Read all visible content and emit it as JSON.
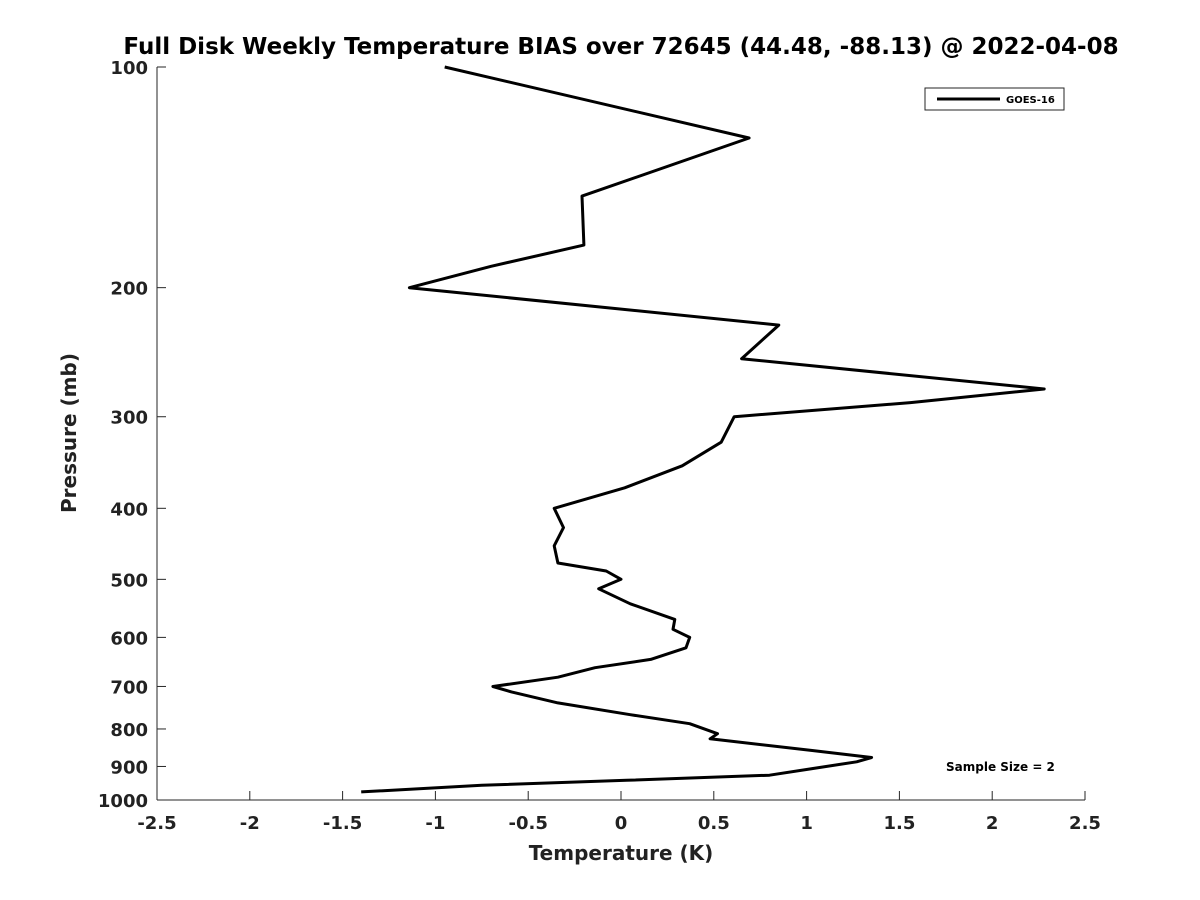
{
  "chart_data": {
    "type": "line",
    "title": "Full Disk Weekly Temperature BIAS over 72645 (44.48, -88.13) @ 2022-04-08",
    "xlabel": "Temperature (K)",
    "ylabel": "Pressure (mb)",
    "xlim": [
      -2.5,
      2.5
    ],
    "ylim": [
      1000,
      100
    ],
    "y_scale": "log",
    "x_ticks": [
      "-2.5",
      "-2",
      "-1.5",
      "-1",
      "-0.5",
      "0",
      "0.5",
      "1",
      "1.5",
      "2",
      "2.5"
    ],
    "y_ticks": [
      "100",
      "200",
      "300",
      "400",
      "500",
      "600",
      "700",
      "800",
      "900",
      "1000"
    ],
    "grid": false,
    "legend_position": "top-right",
    "line_color": "#000000",
    "annotation": "Sample Size = 2",
    "series": [
      {
        "name": "GOES-16",
        "points": [
          {
            "x": -0.95,
            "p": 100
          },
          {
            "x": 0.69,
            "p": 125
          },
          {
            "x": -0.21,
            "p": 150
          },
          {
            "x": -0.2,
            "p": 175
          },
          {
            "x": -0.7,
            "p": 187
          },
          {
            "x": -1.14,
            "p": 200
          },
          {
            "x": 0.85,
            "p": 225
          },
          {
            "x": 0.65,
            "p": 250
          },
          {
            "x": 2.28,
            "p": 275
          },
          {
            "x": 1.56,
            "p": 287
          },
          {
            "x": 0.61,
            "p": 300
          },
          {
            "x": 0.54,
            "p": 325
          },
          {
            "x": 0.33,
            "p": 350
          },
          {
            "x": 0.02,
            "p": 375
          },
          {
            "x": -0.36,
            "p": 400
          },
          {
            "x": -0.31,
            "p": 425
          },
          {
            "x": -0.36,
            "p": 450
          },
          {
            "x": -0.34,
            "p": 475
          },
          {
            "x": -0.08,
            "p": 487
          },
          {
            "x": 0.0,
            "p": 500
          },
          {
            "x": -0.12,
            "p": 515
          },
          {
            "x": 0.05,
            "p": 540
          },
          {
            "x": 0.29,
            "p": 567
          },
          {
            "x": 0.28,
            "p": 585
          },
          {
            "x": 0.37,
            "p": 600
          },
          {
            "x": 0.35,
            "p": 620
          },
          {
            "x": 0.16,
            "p": 643
          },
          {
            "x": -0.14,
            "p": 660
          },
          {
            "x": -0.34,
            "p": 680
          },
          {
            "x": -0.69,
            "p": 700
          },
          {
            "x": -0.59,
            "p": 712
          },
          {
            "x": -0.34,
            "p": 737
          },
          {
            "x": 0.05,
            "p": 765
          },
          {
            "x": 0.37,
            "p": 787
          },
          {
            "x": 0.52,
            "p": 812
          },
          {
            "x": 0.48,
            "p": 825
          },
          {
            "x": 1.03,
            "p": 856
          },
          {
            "x": 1.35,
            "p": 875
          },
          {
            "x": 1.27,
            "p": 887
          },
          {
            "x": 1.03,
            "p": 906
          },
          {
            "x": 0.8,
            "p": 925
          },
          {
            "x": 0.03,
            "p": 940
          },
          {
            "x": -0.75,
            "p": 955
          },
          {
            "x": -1.4,
            "p": 975
          }
        ]
      }
    ]
  }
}
